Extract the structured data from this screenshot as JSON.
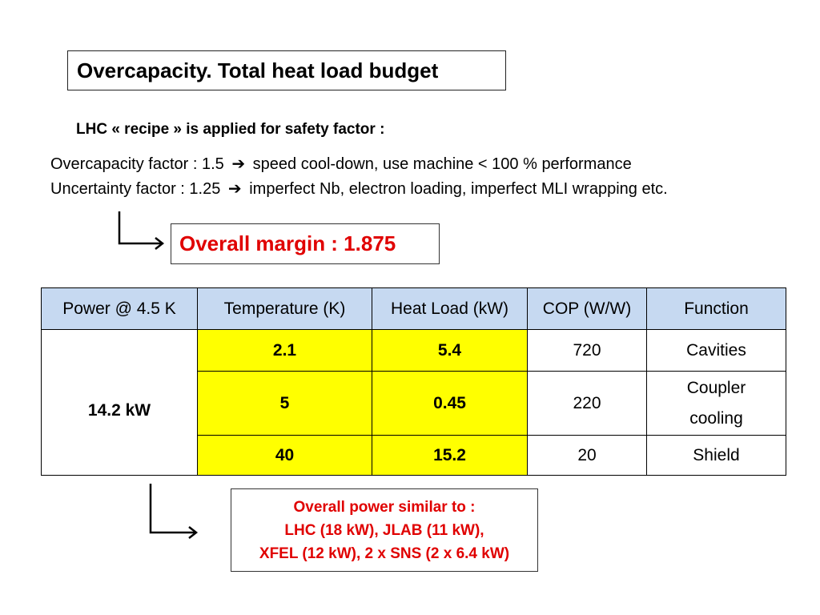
{
  "slide": {
    "title": "Overcapacity.  Total heat load budget",
    "subtitle": "LHC « recipe » is applied for safety factor :",
    "factors": [
      {
        "lead": "Overcapacity  factor : 1.5",
        "arrow": "➔",
        "detail": "speed cool-down, use machine < 100 % performance"
      },
      {
        "lead": "Uncertainty factor : 1.25",
        "arrow": "➔",
        "detail": "imperfect Nb, electron loading, imperfect MLI wrapping etc."
      }
    ],
    "overall_margin": "Overall margin : 1.875",
    "table": {
      "headers": [
        "Power @ 4.5 K",
        "Temperature (K)",
        "Heat Load (kW)",
        "COP (W/W)",
        "Function"
      ],
      "power": "14.2 kW",
      "rows": [
        {
          "temperature": "2.1",
          "heat_load": "5.4",
          "cop": "720",
          "function": "Cavities"
        },
        {
          "temperature": "5",
          "heat_load": "0.45",
          "cop": "220",
          "function": "Coupler cooling"
        },
        {
          "temperature": "40",
          "heat_load": "15.2",
          "cop": "20",
          "function": "Shield"
        }
      ]
    },
    "overall_power": {
      "line1": "Overall power similar to :",
      "line2": "LHC (18 kW), JLAB (11 kW),",
      "line3": "XFEL (12 kW), 2 x SNS (2 x 6.4 kW)"
    },
    "colors": {
      "highlight_red": "#e00000",
      "header_blue": "#c6d9f1",
      "cell_yellow": "#ffff00"
    }
  }
}
